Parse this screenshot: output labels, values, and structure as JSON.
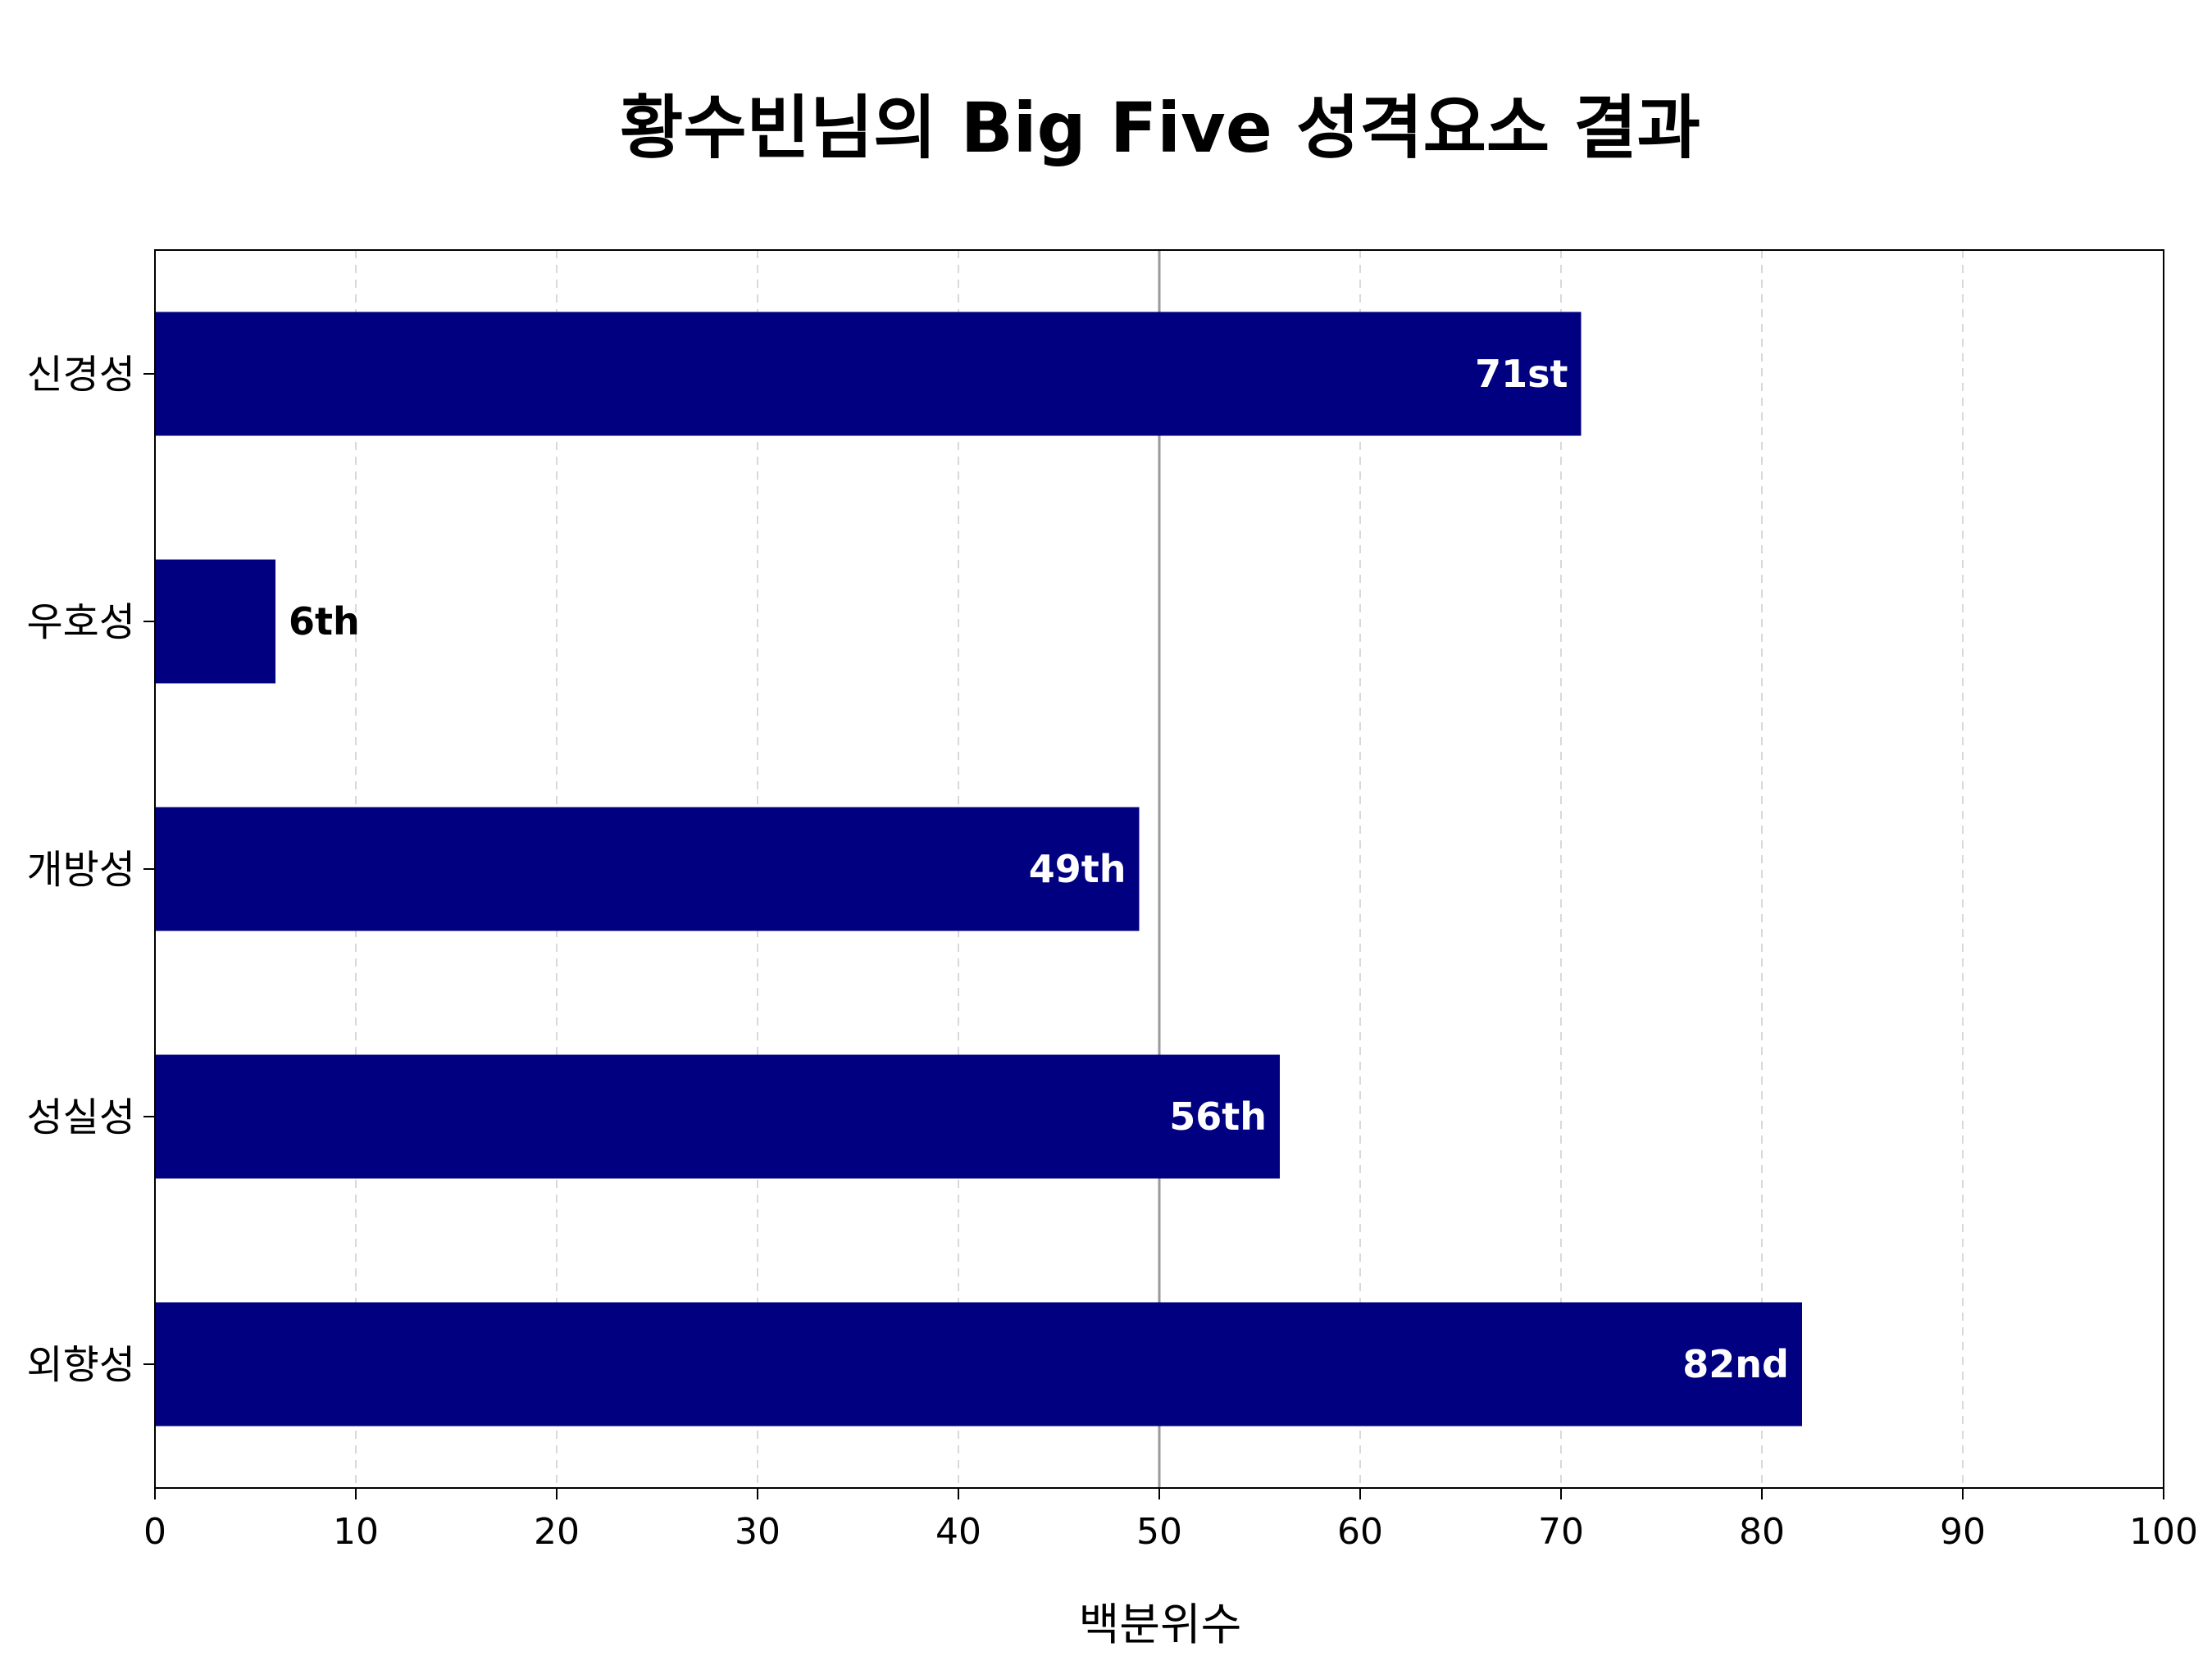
{
  "chart_data": {
    "type": "bar",
    "orientation": "horizontal",
    "title": "황수빈님의 Big Five 성격요소 결과",
    "xlabel": "백분위수",
    "ylabel": "",
    "xlim": [
      0,
      100
    ],
    "x_ticks": [
      0,
      10,
      20,
      30,
      40,
      50,
      60,
      70,
      80,
      90,
      100
    ],
    "grid": "vertical dashed",
    "reference_line": 50,
    "categories": [
      "신경성",
      "우호성",
      "개방성",
      "성실성",
      "외향성"
    ],
    "values": [
      71,
      6,
      49,
      56,
      82
    ],
    "value_labels": [
      "71st",
      "6th",
      "49th",
      "56th",
      "82nd"
    ],
    "bar_color": "#000080",
    "label_color_inside": "#ffffff",
    "label_color_outside": "#000000"
  }
}
